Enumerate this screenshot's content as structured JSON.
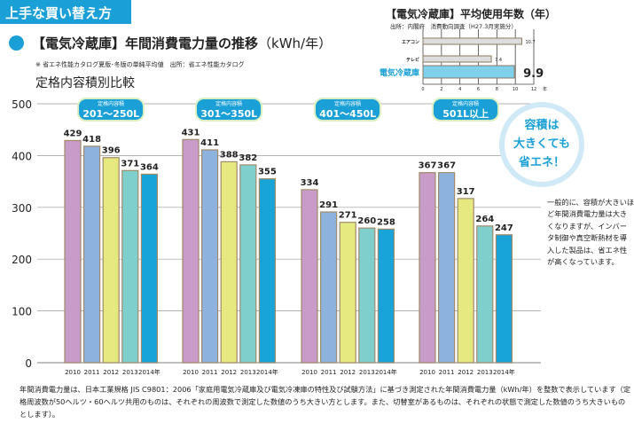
{
  "banner": "上手な買い替え方",
  "title": "【電気冷蔵庫】年間消費電力量の推移",
  "title_unit": "（kWh/年）",
  "note": "※ 省エネ性能カタログ夏版･冬版の単純平均値　出所：省エネ性能カタログ",
  "subtitle": "定格内容積別比較",
  "bubble": [
    "容積は",
    "大きくても",
    "省エネ！"
  ],
  "side_text": "一般的に、容積が大きいほど年間消費電力量は大きくなりますが、インバータ制御や真空断熱材を導入した製品は、省エネ性が高くなっています。",
  "footnote": "年間消費電力量は、日本工業規格 JIS C9801：2006「家庭用電気冷蔵庫及び電気冷凍庫の特性及び試験方法」に基づき測定された年間消費電力量（kWh/年）を整数で表示しています（定格周波数が50ヘルツ・60ヘルツ共用のものは、それぞれの周波数で測定した数値のうち大きい方とします。また、切替室があるものは、それぞれの状態で測定した数値のうち大きいものとします）。",
  "colors": {
    "accent": "#1aa0d6",
    "bars": [
      "#c89bc9",
      "#8eb2de",
      "#e6e880",
      "#7fcfcd",
      "#19a4d8"
    ],
    "border": "#a08a6a"
  },
  "chart_data": [
    {
      "type": "bar",
      "title": "定格内容積別比較",
      "ylabel": "kWh/年",
      "ylim": [
        0,
        500
      ],
      "yticks": [
        0,
        100,
        200,
        300,
        400,
        500
      ],
      "x_labels": [
        "2010",
        "2011",
        "2012",
        "2013",
        "2014年"
      ],
      "grid": true,
      "groups": [
        {
          "label_small": "定格内容積",
          "label": "201～250L",
          "values": [
            429,
            418,
            396,
            371,
            364
          ]
        },
        {
          "label_small": "定格内容積",
          "label": "301～350L",
          "values": [
            431,
            411,
            388,
            382,
            355
          ]
        },
        {
          "label_small": "定格内容積",
          "label": "401～450L",
          "values": [
            334,
            291,
            271,
            260,
            258
          ]
        },
        {
          "label_small": "定格内容積",
          "label": "501L以上",
          "values": [
            367,
            367,
            317,
            264,
            247
          ]
        }
      ]
    },
    {
      "type": "bar",
      "orientation": "horizontal",
      "title": "【電気冷蔵庫】平均使用年数（年）",
      "source": "出所：内閣府　消費動向調査（H27.3月実施分）",
      "categories": [
        "エアコン",
        "テレビ",
        "電気冷蔵庫"
      ],
      "values": [
        10.7,
        7.4,
        9.9
      ],
      "value_labels": [
        "10.7",
        "7.4",
        "9.9"
      ],
      "xlim": [
        0,
        12
      ],
      "xticks": [
        "0",
        "2",
        "4",
        "6",
        "8",
        "10",
        "12"
      ],
      "xunit": "年"
    }
  ]
}
